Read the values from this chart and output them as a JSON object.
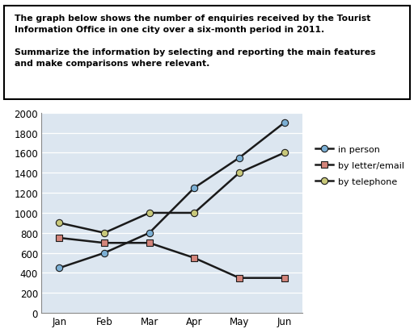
{
  "months": [
    "Jan",
    "Feb",
    "Mar",
    "Apr",
    "May",
    "Jun"
  ],
  "in_person": [
    450,
    600,
    800,
    1250,
    1550,
    1900
  ],
  "by_letter_email": [
    750,
    700,
    700,
    550,
    350,
    350
  ],
  "by_telephone": [
    900,
    800,
    1000,
    1000,
    1400,
    1600
  ],
  "line_color": "#1a1a1a",
  "in_person_marker_color": "#7bafd4",
  "by_letter_email_marker_color": "#d4857b",
  "by_telephone_marker_color": "#c8c87a",
  "ylim": [
    0,
    2000
  ],
  "yticks": [
    0,
    200,
    400,
    600,
    800,
    1000,
    1200,
    1400,
    1600,
    1800,
    2000
  ],
  "legend_labels": [
    "in person",
    "by letter/email",
    "by telephone"
  ],
  "plot_bg_color": "#dce6f0",
  "grid_color": "#ffffff",
  "text_line1": "The graph below shows the number of enquiries received by the Tourist",
  "text_line2": "Information Office in one city over a six-month period in 2011.",
  "text_line3": "",
  "text_line4": "Summarize the information by selecting and reporting the main features",
  "text_line5": "and make comparisons where relevant."
}
